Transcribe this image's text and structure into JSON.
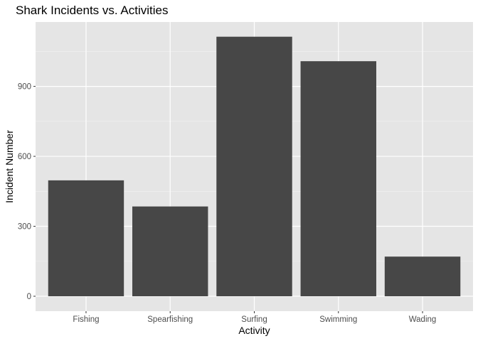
{
  "chart_data": {
    "type": "bar",
    "title": "Shark Incidents vs. Activities",
    "xlabel": "Activity",
    "ylabel": "Incident Number",
    "categories": [
      "Fishing",
      "Spearfishing",
      "Surfing",
      "Swimming",
      "Wading"
    ],
    "values": [
      497,
      385,
      1113,
      1008,
      170
    ],
    "ylim": [
      -64,
      1176
    ],
    "yticks": [
      0,
      300,
      600,
      900
    ],
    "ytick_labels": [
      "0",
      "300",
      "600",
      "900"
    ],
    "grid": true,
    "legend": "none"
  },
  "colors": {
    "panel_background": "#e5e5e5",
    "grid_major": "#ffffff",
    "bar_fill": "#474747",
    "tick_text": "#4d4d4d",
    "tick_mark": "#333333"
  }
}
